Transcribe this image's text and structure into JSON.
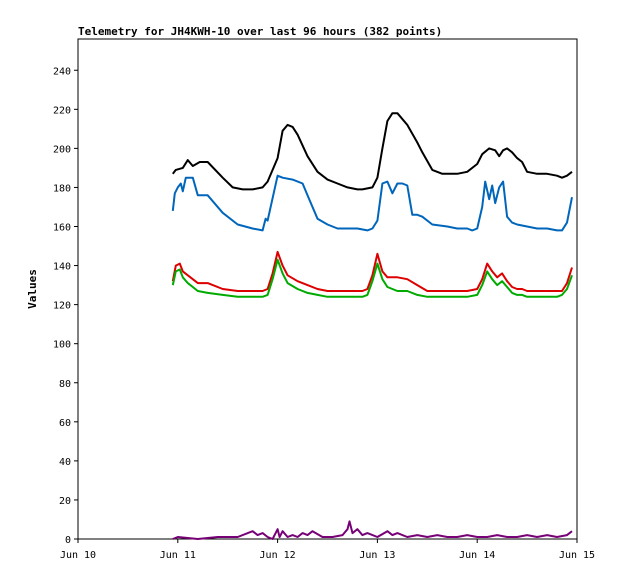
{
  "chart_data": {
    "type": "line",
    "title": "Telemetry for JH4KWH-10 over last 96 hours (382 points)",
    "xlabel": "",
    "ylabel": "Values",
    "ylim": [
      0,
      256
    ],
    "xlim": [
      0,
      5
    ],
    "yticks": [
      0,
      20,
      40,
      60,
      80,
      100,
      120,
      140,
      160,
      180,
      200,
      220,
      240
    ],
    "xticks": [
      {
        "x": 0,
        "label": "Jun 10"
      },
      {
        "x": 1,
        "label": "Jun 11"
      },
      {
        "x": 2,
        "label": "Jun 12"
      },
      {
        "x": 3,
        "label": "Jun 13"
      },
      {
        "x": 4,
        "label": "Jun 14"
      },
      {
        "x": 5,
        "label": "Jun 15"
      }
    ],
    "grid": false,
    "legend": "none",
    "series": [
      {
        "color": "#000000",
        "x": [
          0.95,
          0.98,
          1.05,
          1.1,
          1.15,
          1.22,
          1.3,
          1.45,
          1.55,
          1.65,
          1.75,
          1.85,
          1.9,
          2.0,
          2.05,
          2.1,
          2.15,
          2.2,
          2.3,
          2.4,
          2.5,
          2.6,
          2.7,
          2.8,
          2.85,
          2.95,
          3.0,
          3.05,
          3.1,
          3.15,
          3.2,
          3.3,
          3.4,
          3.45,
          3.55,
          3.65,
          3.8,
          3.9,
          4.0,
          4.05,
          4.12,
          4.18,
          4.22,
          4.26,
          4.3,
          4.35,
          4.4,
          4.45,
          4.5,
          4.6,
          4.7,
          4.8,
          4.85,
          4.9,
          4.95
        ],
        "y": [
          187,
          189,
          190,
          194,
          191,
          193,
          193,
          185,
          180,
          179,
          179,
          180,
          183,
          195,
          209,
          212,
          211,
          207,
          196,
          188,
          184,
          182,
          180,
          179,
          179,
          180,
          185,
          200,
          214,
          218,
          218,
          212,
          203,
          198,
          189,
          187,
          187,
          188,
          192,
          197,
          200,
          199,
          196,
          199,
          200,
          198,
          195,
          193,
          188,
          187,
          187,
          186,
          185,
          186,
          188
        ]
      },
      {
        "color": "#0066bb",
        "x": [
          0.95,
          0.97,
          1.0,
          1.03,
          1.05,
          1.08,
          1.15,
          1.2,
          1.3,
          1.45,
          1.6,
          1.75,
          1.85,
          1.88,
          1.9,
          2.0,
          2.05,
          2.15,
          2.25,
          2.3,
          2.4,
          2.5,
          2.6,
          2.7,
          2.8,
          2.9,
          2.95,
          3.0,
          3.05,
          3.1,
          3.15,
          3.2,
          3.25,
          3.3,
          3.35,
          3.4,
          3.45,
          3.55,
          3.7,
          3.8,
          3.9,
          3.95,
          4.0,
          4.05,
          4.08,
          4.12,
          4.15,
          4.18,
          4.22,
          4.26,
          4.3,
          4.35,
          4.4,
          4.5,
          4.6,
          4.7,
          4.8,
          4.85,
          4.9,
          4.95
        ],
        "y": [
          168,
          177,
          180,
          182,
          178,
          185,
          185,
          176,
          176,
          167,
          161,
          159,
          158,
          164,
          163,
          186,
          185,
          184,
          182,
          176,
          164,
          161,
          159,
          159,
          159,
          158,
          159,
          163,
          182,
          183,
          177,
          182,
          182,
          181,
          166,
          166,
          165,
          161,
          160,
          159,
          159,
          158,
          159,
          170,
          183,
          174,
          181,
          172,
          180,
          183,
          165,
          162,
          161,
          160,
          159,
          159,
          158,
          158,
          162,
          175
        ]
      },
      {
        "color": "#dd0000",
        "x": [
          0.95,
          0.98,
          1.02,
          1.05,
          1.1,
          1.15,
          1.2,
          1.3,
          1.45,
          1.6,
          1.75,
          1.85,
          1.9,
          1.95,
          2.0,
          2.05,
          2.1,
          2.2,
          2.3,
          2.4,
          2.5,
          2.6,
          2.7,
          2.8,
          2.85,
          2.9,
          2.95,
          3.0,
          3.05,
          3.1,
          3.2,
          3.3,
          3.4,
          3.5,
          3.6,
          3.7,
          3.8,
          3.9,
          4.0,
          4.05,
          4.1,
          4.15,
          4.2,
          4.25,
          4.3,
          4.35,
          4.4,
          4.45,
          4.5,
          4.6,
          4.7,
          4.8,
          4.85,
          4.9,
          4.95
        ],
        "y": [
          132,
          140,
          141,
          137,
          135,
          133,
          131,
          131,
          128,
          127,
          127,
          127,
          128,
          136,
          147,
          140,
          135,
          132,
          130,
          128,
          127,
          127,
          127,
          127,
          127,
          128,
          135,
          146,
          137,
          134,
          134,
          133,
          130,
          127,
          127,
          127,
          127,
          127,
          128,
          133,
          141,
          137,
          134,
          136,
          132,
          129,
          128,
          128,
          127,
          127,
          127,
          127,
          127,
          131,
          139
        ]
      },
      {
        "color": "#00aa00",
        "x": [
          0.95,
          0.98,
          1.02,
          1.05,
          1.1,
          1.15,
          1.2,
          1.3,
          1.45,
          1.6,
          1.75,
          1.85,
          1.9,
          1.95,
          2.0,
          2.05,
          2.1,
          2.2,
          2.3,
          2.4,
          2.5,
          2.6,
          2.7,
          2.8,
          2.85,
          2.9,
          2.95,
          3.0,
          3.05,
          3.1,
          3.2,
          3.3,
          3.4,
          3.5,
          3.6,
          3.7,
          3.8,
          3.9,
          4.0,
          4.05,
          4.1,
          4.15,
          4.2,
          4.25,
          4.3,
          4.35,
          4.4,
          4.45,
          4.5,
          4.6,
          4.7,
          4.8,
          4.85,
          4.9,
          4.95
        ],
        "y": [
          130,
          137,
          138,
          134,
          131,
          129,
          127,
          126,
          125,
          124,
          124,
          124,
          125,
          133,
          143,
          136,
          131,
          128,
          126,
          125,
          124,
          124,
          124,
          124,
          124,
          125,
          132,
          141,
          133,
          129,
          127,
          127,
          125,
          124,
          124,
          124,
          124,
          124,
          125,
          130,
          137,
          133,
          130,
          132,
          129,
          126,
          125,
          125,
          124,
          124,
          124,
          124,
          125,
          128,
          135
        ]
      },
      {
        "color": "#770077",
        "x": [
          0.95,
          1.0,
          1.2,
          1.4,
          1.6,
          1.75,
          1.8,
          1.85,
          1.9,
          1.95,
          2.0,
          2.02,
          2.05,
          2.1,
          2.15,
          2.2,
          2.25,
          2.3,
          2.35,
          2.45,
          2.55,
          2.65,
          2.7,
          2.72,
          2.75,
          2.8,
          2.85,
          2.9,
          3.0,
          3.1,
          3.15,
          3.2,
          3.3,
          3.4,
          3.5,
          3.6,
          3.7,
          3.8,
          3.9,
          4.0,
          4.1,
          4.2,
          4.3,
          4.4,
          4.5,
          4.6,
          4.7,
          4.8,
          4.9,
          4.95
        ],
        "y": [
          0,
          1,
          0,
          1,
          1,
          4,
          2,
          3,
          1,
          0,
          5,
          1,
          4,
          1,
          2,
          1,
          3,
          2,
          4,
          1,
          1,
          2,
          5,
          9,
          3,
          5,
          2,
          3,
          1,
          4,
          2,
          3,
          1,
          2,
          1,
          2,
          1,
          1,
          2,
          1,
          1,
          2,
          1,
          1,
          2,
          1,
          2,
          1,
          2,
          4
        ]
      }
    ]
  }
}
